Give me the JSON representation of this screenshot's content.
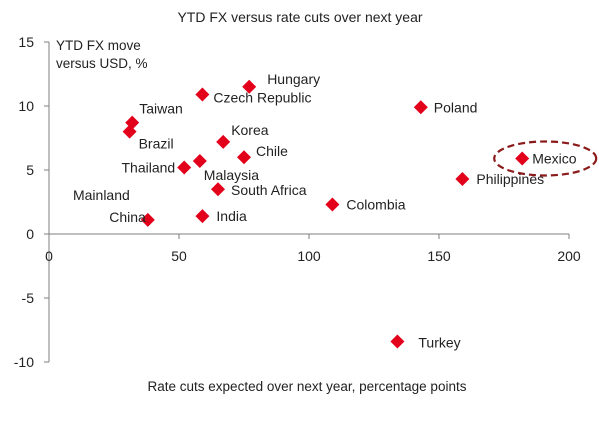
{
  "chart_data": {
    "type": "scatter",
    "title": "YTD FX versus rate cuts over next year",
    "xlabel": "Rate cuts expected over next year, percentage points",
    "ylabel": "YTD FX move versus USD, %",
    "xlim": [
      0,
      200
    ],
    "ylim": [
      -10,
      15
    ],
    "xticks": [
      0,
      50,
      100,
      150,
      200
    ],
    "yticks": [
      15,
      10,
      5,
      0,
      -5,
      -10
    ],
    "grid": false,
    "marker": "diamond",
    "marker_color": "#e3001b",
    "points": [
      {
        "label": "Hungary",
        "x": 77,
        "y": 11.5
      },
      {
        "label": "Czech Republic",
        "x": 59,
        "y": 10.9
      },
      {
        "label": "Poland",
        "x": 143,
        "y": 9.9
      },
      {
        "label": "Taiwan",
        "x": 32,
        "y": 8.7
      },
      {
        "label": "Brazil",
        "x": 31,
        "y": 8.0
      },
      {
        "label": "Korea",
        "x": 67,
        "y": 7.2
      },
      {
        "label": "Chile",
        "x": 75,
        "y": 6.0
      },
      {
        "label": "Mexico",
        "x": 182,
        "y": 5.9,
        "highlight": true
      },
      {
        "label": "Thailand",
        "x": 52,
        "y": 5.2
      },
      {
        "label": "Malaysia",
        "x": 58,
        "y": 5.7
      },
      {
        "label": "Philippines",
        "x": 159,
        "y": 4.3
      },
      {
        "label": "South Africa",
        "x": 65,
        "y": 3.5
      },
      {
        "label": "Colombia",
        "x": 109,
        "y": 2.3
      },
      {
        "label": "India",
        "x": 59,
        "y": 1.4
      },
      {
        "label": "Mainland China",
        "x": 38,
        "y": 1.1
      },
      {
        "label": "Turkey",
        "x": 134,
        "y": -8.4
      }
    ],
    "highlight_color": "#8b1a1a"
  }
}
